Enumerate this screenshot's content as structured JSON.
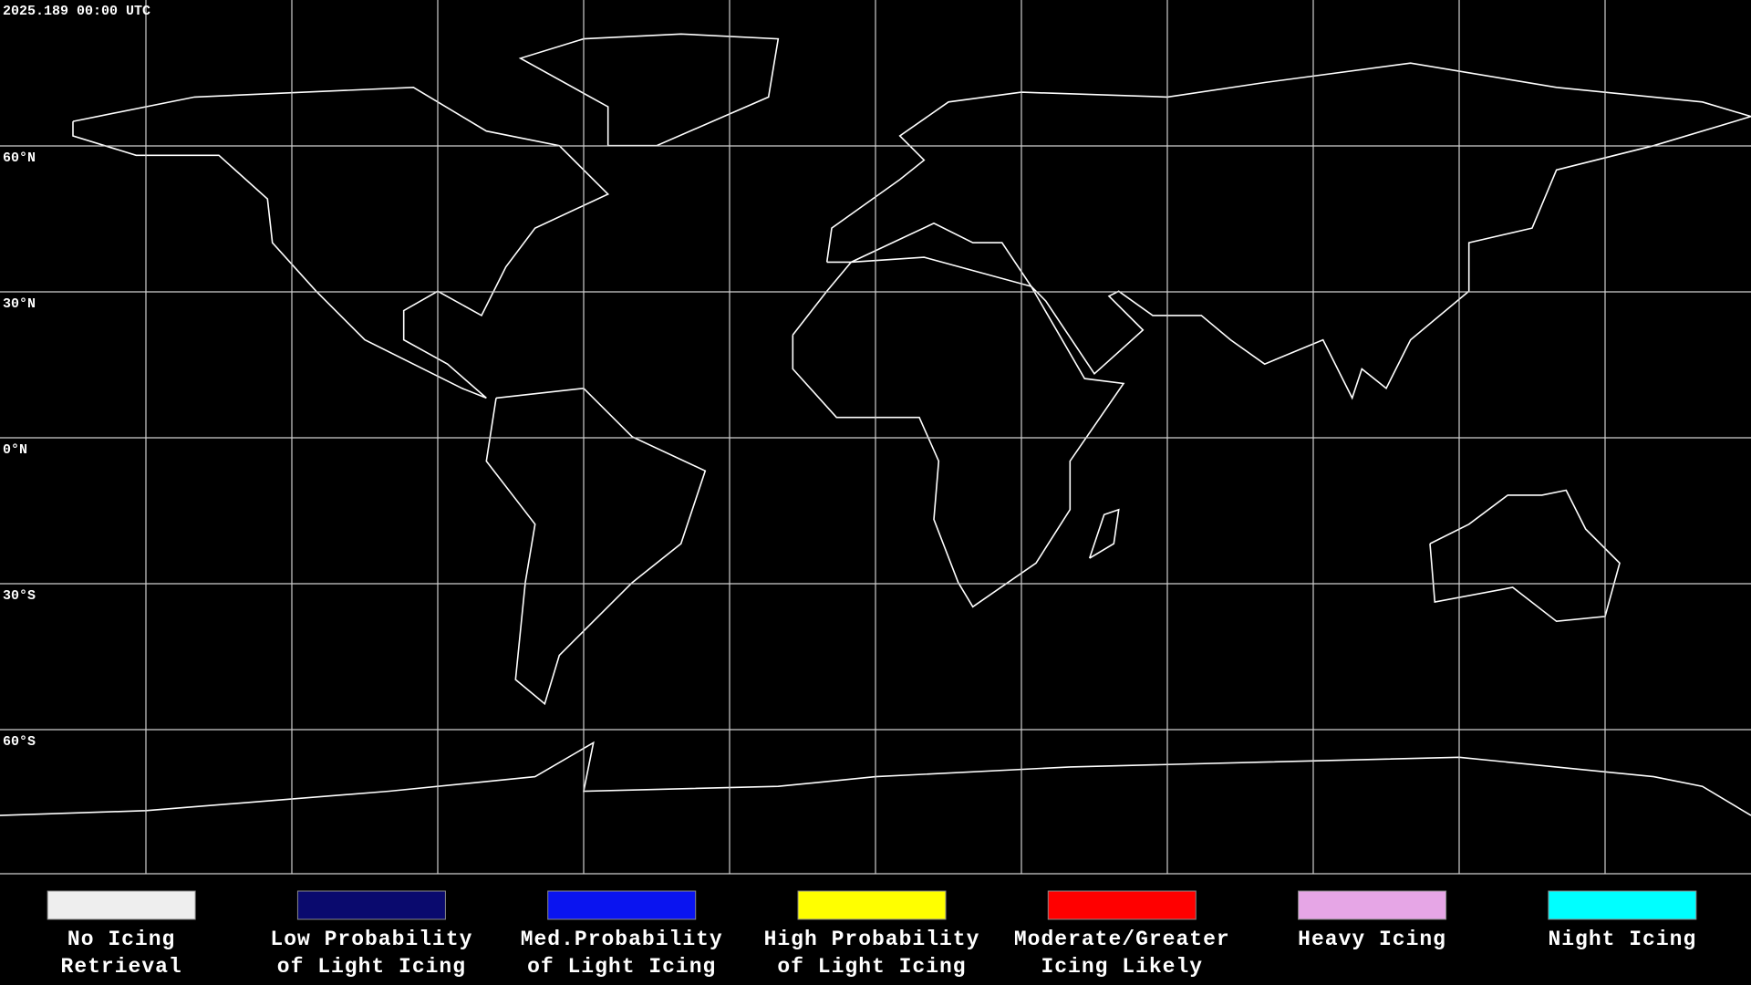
{
  "timestamp": "2025.189 00:00 UTC",
  "latitude_labels": [
    "60°N",
    "30°N",
    "0°N",
    "30°S",
    "60°S"
  ],
  "legend": [
    {
      "lines": [
        "No Icing",
        "Retrieval"
      ],
      "color": "#eeeeee"
    },
    {
      "lines": [
        "Low Probability",
        "of Light Icing"
      ],
      "color": "#0a0a6e"
    },
    {
      "lines": [
        "Med.Probability",
        "of Light Icing"
      ],
      "color": "#0a14f0"
    },
    {
      "lines": [
        "High Probability",
        "of Light Icing"
      ],
      "color": "#ffff00"
    },
    {
      "lines": [
        "Moderate/Greater",
        "Icing Likely"
      ],
      "color": "#ff0000"
    },
    {
      "lines": [
        "Heavy Icing"
      ],
      "color": "#e6a6e6"
    },
    {
      "lines": [
        "Night Icing"
      ],
      "color": "#00ffff"
    }
  ]
}
